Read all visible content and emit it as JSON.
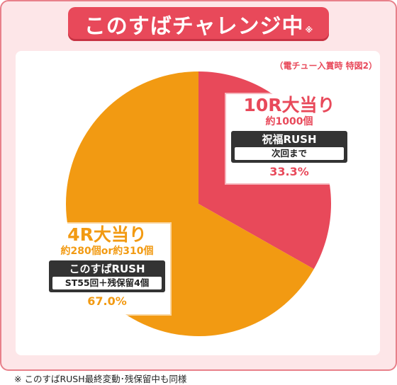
{
  "header": {
    "title": "このすばチャレンジ中",
    "title_mark": "※"
  },
  "note": "（電チュー入賞時 特図2）",
  "footnote": "※ このすばRUSH最終変動･残保留中も同様",
  "colors": {
    "red": "#e8495a",
    "orange": "#f29a12",
    "pink_bg": "#fde6e8"
  },
  "chart_data": {
    "type": "pie",
    "slices": [
      {
        "name": "10R大当り",
        "value": 33.3,
        "label": "33.3%",
        "payout": "約1000個",
        "mode": "祝福RUSH",
        "mode_detail": "次回まで",
        "color": "#e8495a"
      },
      {
        "name": "4R大当り",
        "value": 67.0,
        "label": "67.0%",
        "payout": "約280個or約310個",
        "mode": "このすばRUSH",
        "mode_detail": "ST55回＋残保留4個",
        "color": "#f29a12"
      }
    ]
  }
}
